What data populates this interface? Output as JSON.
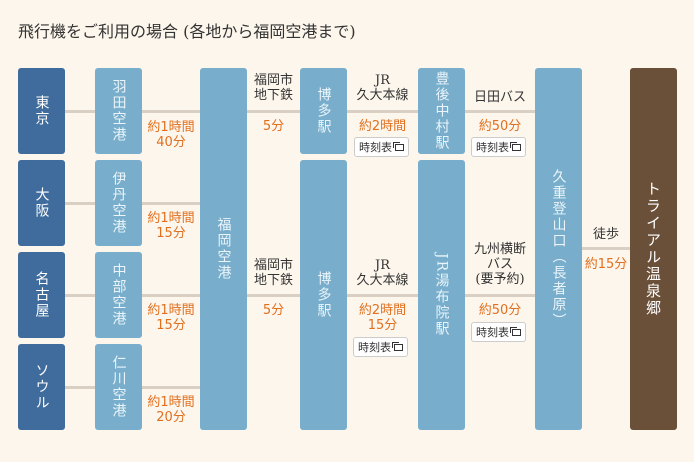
{
  "title": "飛行機をご利用の場合 (各地から福岡空港まで)",
  "origins": [
    "東京",
    "大阪",
    "名古屋",
    "ソウル"
  ],
  "airports": [
    "羽田空港",
    "伊丹空港",
    "中部空港",
    "仁川空港"
  ],
  "flight_times": [
    [
      "約1時間",
      "40分"
    ],
    [
      "約1時間",
      "15分"
    ],
    [
      "約1時間",
      "15分"
    ],
    [
      "約1時間",
      "20分"
    ]
  ],
  "fukuoka_airport": "福岡空港",
  "subway": {
    "label1": "福岡市",
    "label2": "地下鉄",
    "time": "5分"
  },
  "hakata": "博多駅",
  "jr": {
    "label1": "JR",
    "label2": "久大本線"
  },
  "route1": {
    "jr_time": "約2時間",
    "station": "豊後中村駅",
    "bus": "日田バス",
    "bus_time": "約50分"
  },
  "route2": {
    "jr_time1": "約2時間",
    "jr_time2": "15分",
    "station": "JR湯布院駅",
    "bus1": "九州横断",
    "bus2": "バス",
    "bus3": "(要予約)",
    "bus_time": "約50分"
  },
  "timetable": "時刻表",
  "kuju": "久重登山口（長者原）",
  "walk": {
    "label": "徒歩",
    "time": "約15分"
  },
  "destination": "トライアル温泉郷"
}
